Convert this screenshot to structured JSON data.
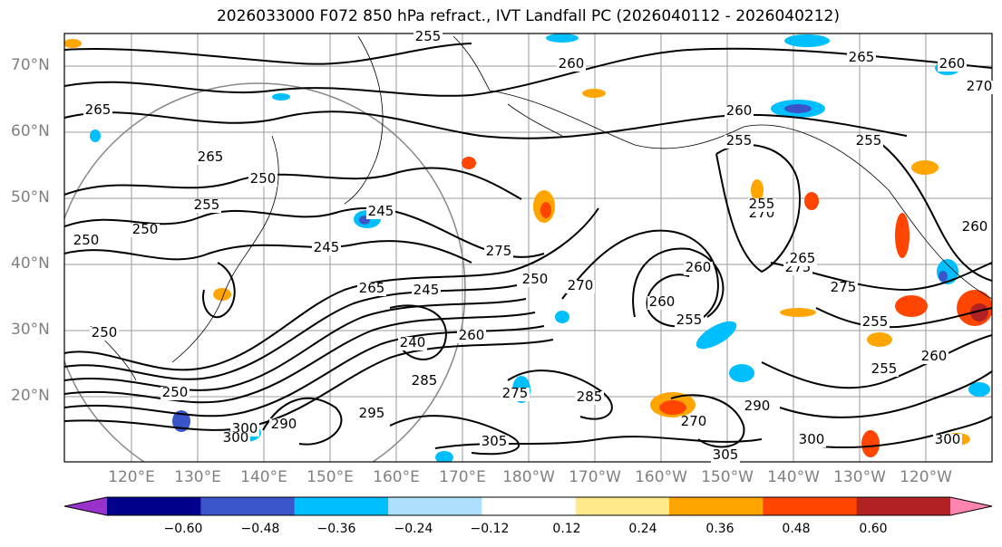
{
  "title": "2026033000 F072 850 hPa refract., IVT Landfall PC (2026040112 - 2026040212)",
  "lat_labels": [
    "70°N",
    "60°N",
    "50°N",
    "40°N",
    "30°N",
    "20°N"
  ],
  "lon_labels": [
    "120°E",
    "130°E",
    "140°E",
    "150°E",
    "160°E",
    "170°E",
    "180°W",
    "170°W",
    "160°W",
    "150°W",
    "140°W",
    "130°W",
    "120°W"
  ],
  "contour_labels": [
    "255",
    "260",
    "265",
    "265",
    "265",
    "260",
    "255",
    "250",
    "250",
    "245",
    "245",
    "250",
    "240",
    "265",
    "245",
    "255",
    "250",
    "260",
    "270",
    "275",
    "285",
    "295",
    "300",
    "290",
    "285",
    "275",
    "260",
    "250",
    "255",
    "290",
    "260",
    "270",
    "275",
    "255",
    "260",
    "255",
    "305",
    "300",
    "300",
    "305",
    "250",
    "255",
    "270",
    "275",
    "300",
    "255",
    "260",
    "260",
    "265",
    "270"
  ],
  "colorbar": {
    "ticks": [
      "−0.60",
      "−0.48",
      "−0.36",
      "−0.24",
      "−0.12",
      "0.12",
      "0.24",
      "0.36",
      "0.48",
      "0.60"
    ],
    "colors": [
      "#9932cc",
      "#00008b",
      "#3a55c9",
      "#00bfff",
      "#addfff",
      "#ffffff",
      "#ffe98a",
      "#ffa500",
      "#ff4500",
      "#b22222",
      "#ff85b0"
    ]
  }
}
